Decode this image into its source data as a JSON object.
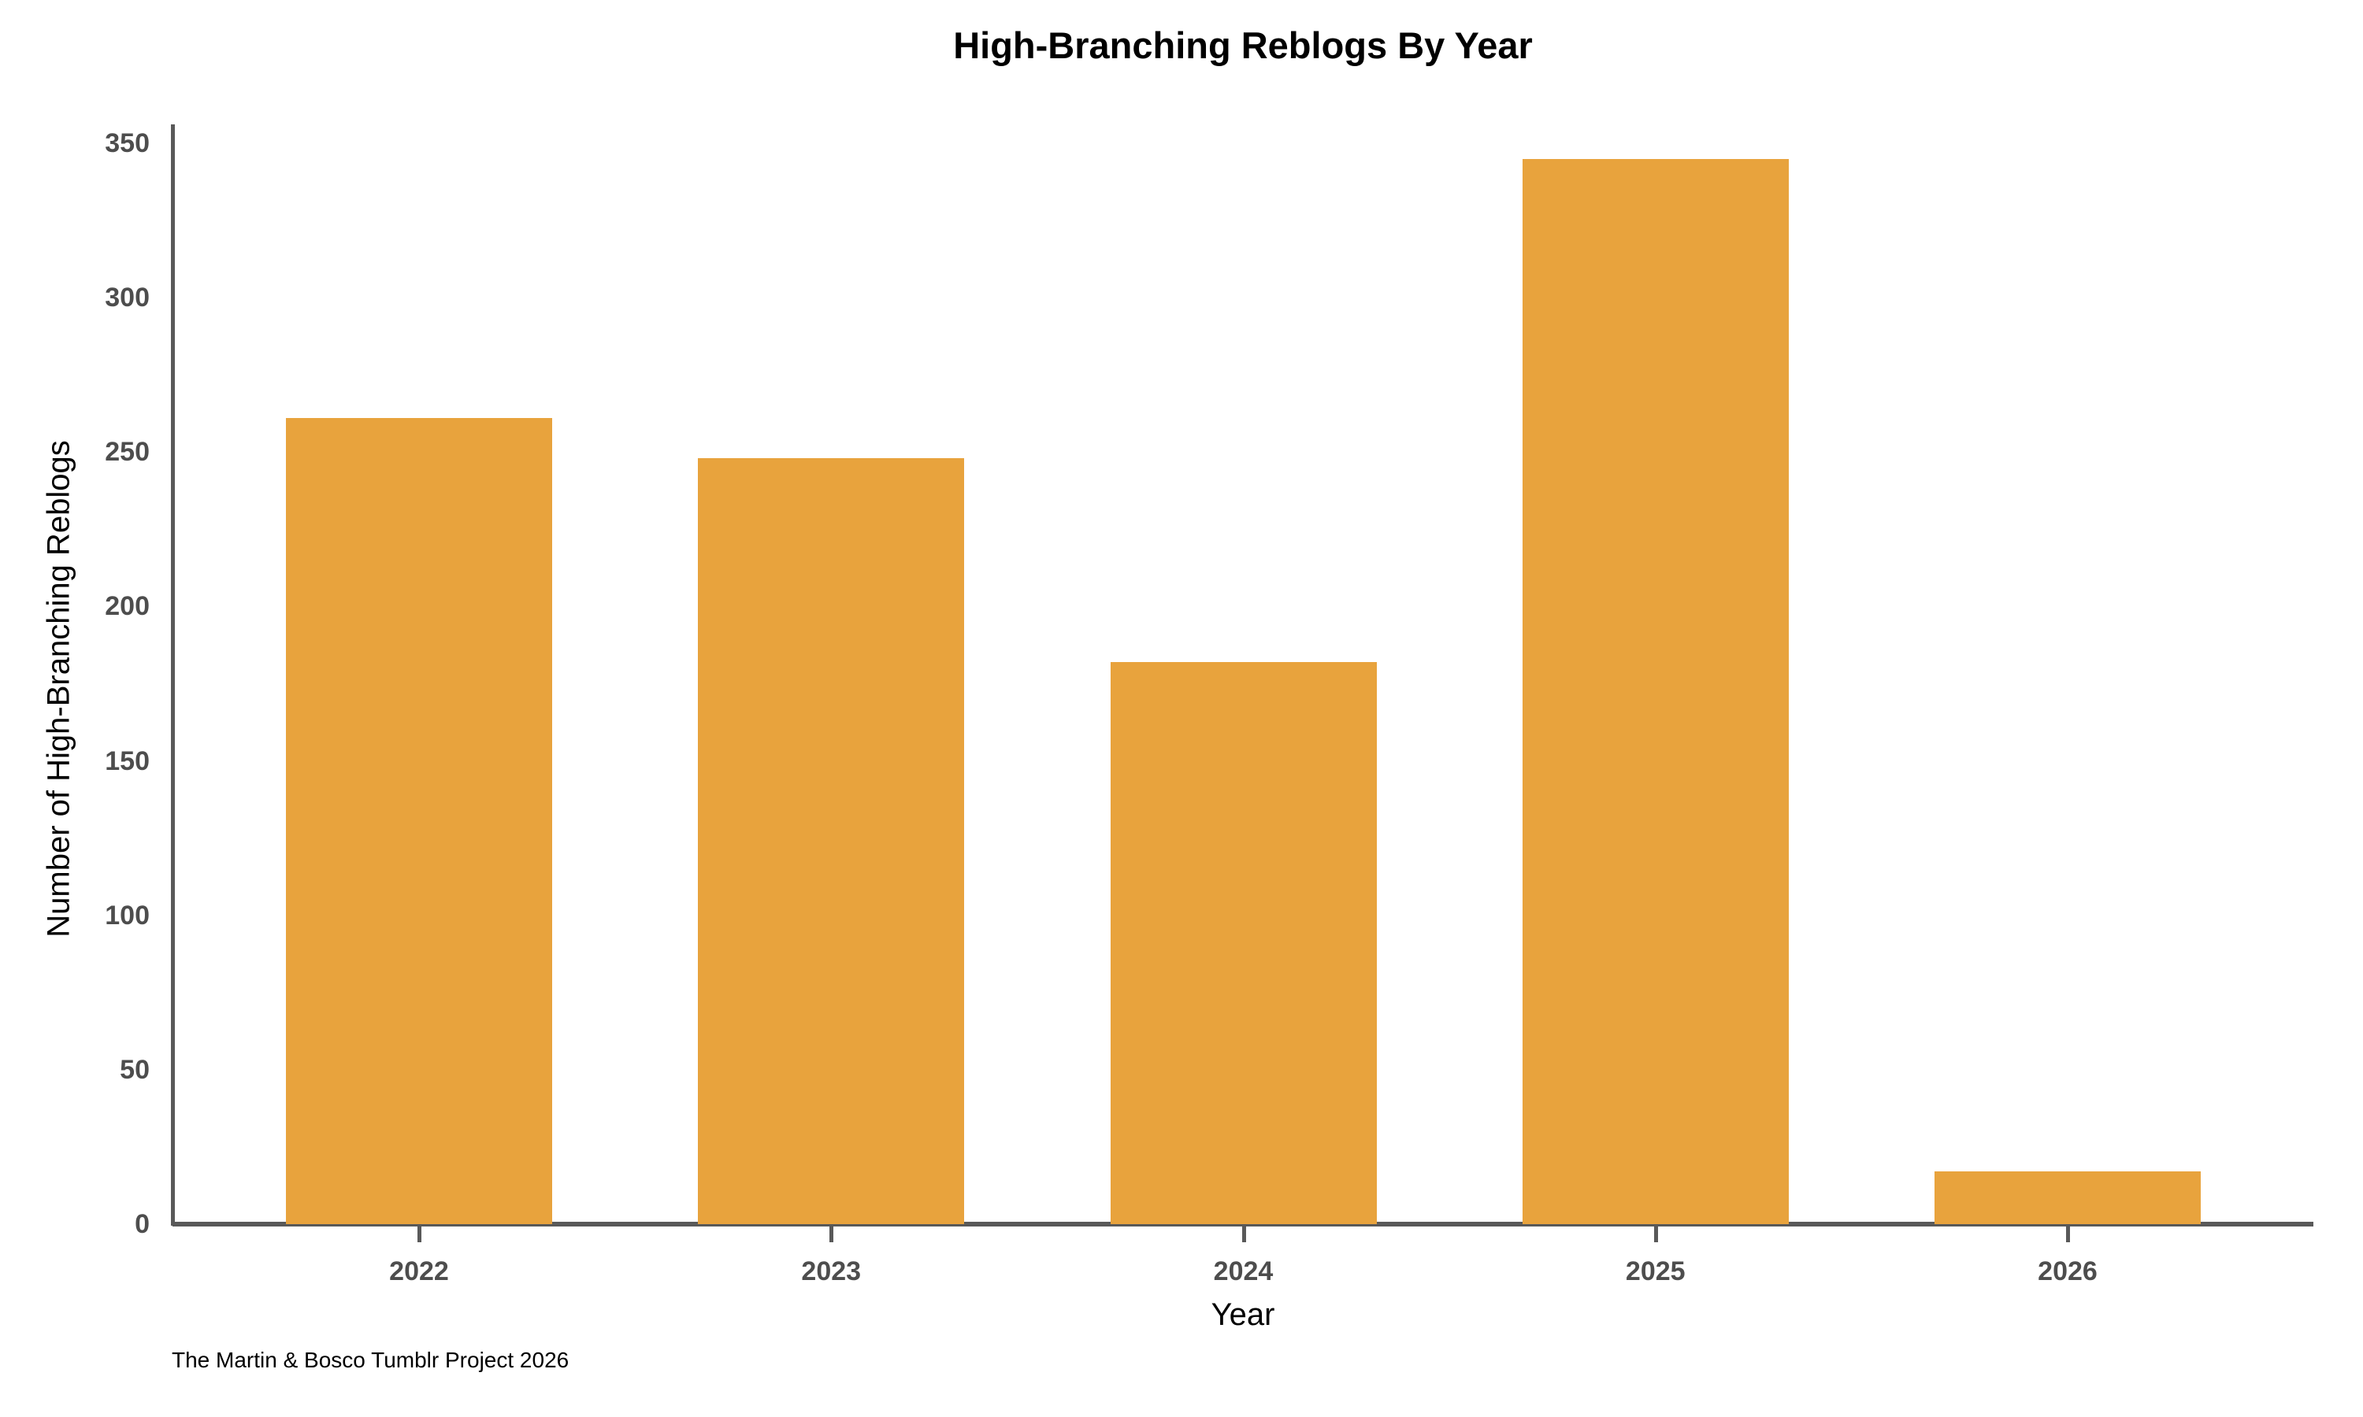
{
  "footer": "The Martin & Bosco Tumblr Project 2026",
  "colors": {
    "bar": "#E8A33D",
    "axis": "#595959",
    "tick_label": "#4d4d4d",
    "text": "#000000",
    "background": "#ffffff"
  },
  "chart_data": {
    "type": "bar",
    "title": "High-Branching Reblogs By Year",
    "xlabel": "Year",
    "ylabel": "Number of High-Branching Reblogs",
    "categories": [
      "2022",
      "2023",
      "2024",
      "2025",
      "2026"
    ],
    "values": [
      261,
      248,
      182,
      345,
      17
    ],
    "ylim": [
      0,
      350
    ],
    "yticks": [
      0,
      50,
      100,
      150,
      200,
      250,
      300,
      350
    ],
    "grid": false,
    "legend": "none",
    "bar_color": "#E8A33D"
  }
}
